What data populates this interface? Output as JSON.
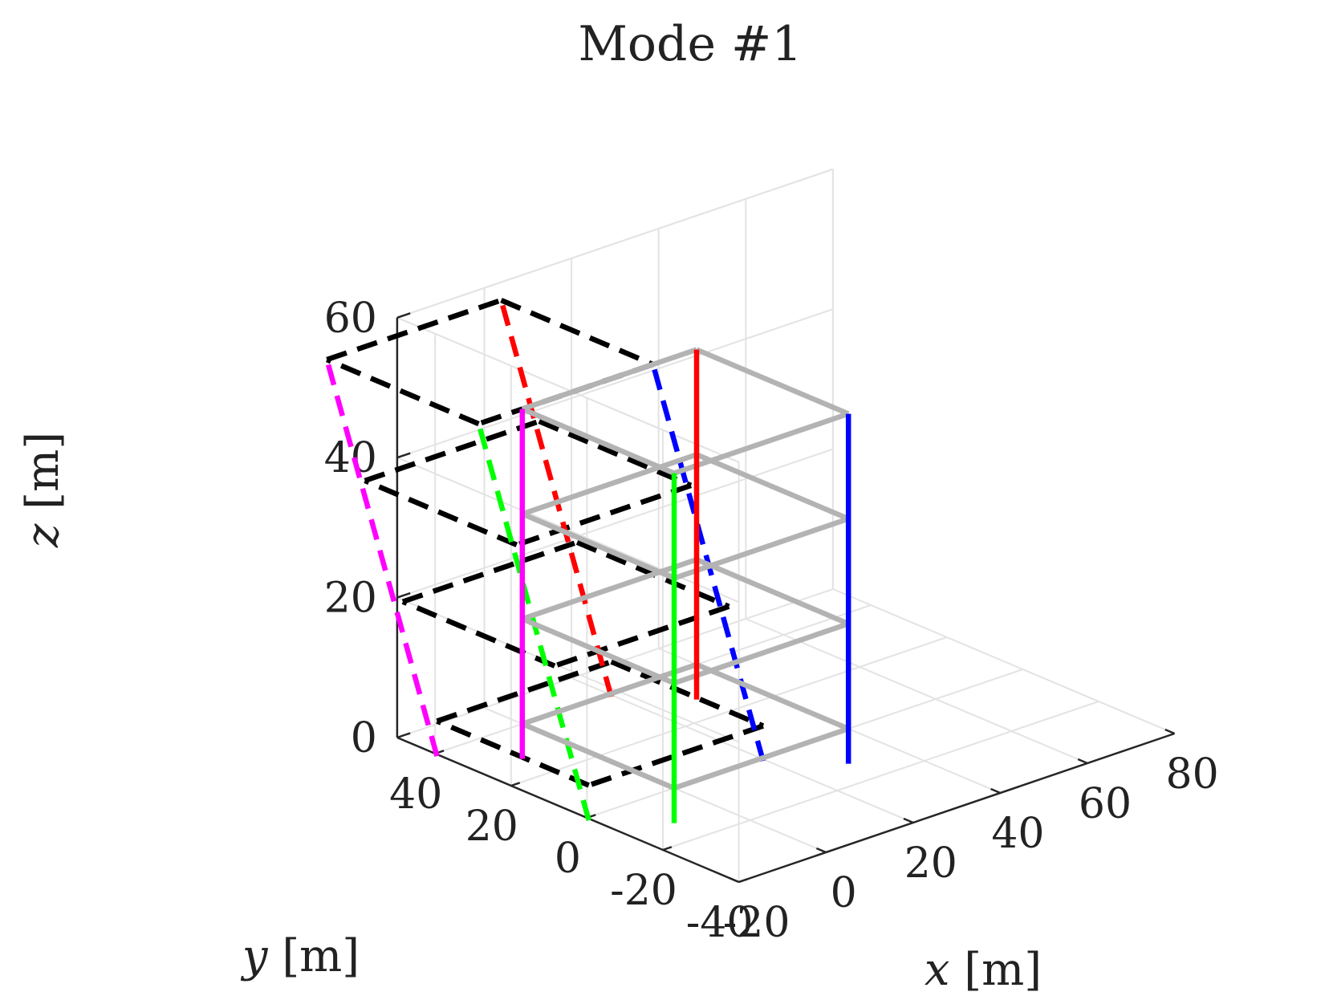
{
  "chart_data": {
    "type": "line",
    "title": "Mode #1",
    "xlabel": {
      "sym": "x",
      "unit": "[m]"
    },
    "ylabel": {
      "sym": "y",
      "unit": "[m]"
    },
    "zlabel": {
      "sym": "z",
      "unit": "[m]"
    },
    "xticks": [
      "-20",
      "0",
      "20",
      "40",
      "60",
      "80"
    ],
    "yticks": [
      "40",
      "20",
      "0",
      "-20",
      "-40"
    ],
    "zticks": [
      "0",
      "20",
      "40",
      "60"
    ],
    "xlim": [
      -20,
      80
    ],
    "ylim": [
      -40,
      50
    ],
    "zlim": [
      0,
      60
    ],
    "grid": true,
    "colors": {
      "undeformed": "#b3b3b3",
      "deformed": "#000000",
      "column_1": "#00ff00",
      "column_2": "#ff00ff",
      "column_3": "#ff0000",
      "column_4": "#0000ff"
    },
    "undeformed_floor_z": [
      0,
      15,
      30,
      45
    ],
    "deformed_floor_z": [
      0,
      15,
      30,
      45
    ],
    "deformed_floor_offset": [
      {
        "dx": -10,
        "dy": 11
      },
      {
        "dx": -10,
        "dy": 20
      },
      {
        "dx": -10,
        "dy": 30
      },
      {
        "dx": -10,
        "dy": 40
      }
    ],
    "column_plan": [
      {
        "x": 0,
        "y": 0
      },
      {
        "x": 0,
        "y": 40
      },
      {
        "x": 40,
        "y": 40
      },
      {
        "x": 40,
        "y": 0
      }
    ],
    "deformed_column_z": [
      -5,
      45
    ]
  }
}
